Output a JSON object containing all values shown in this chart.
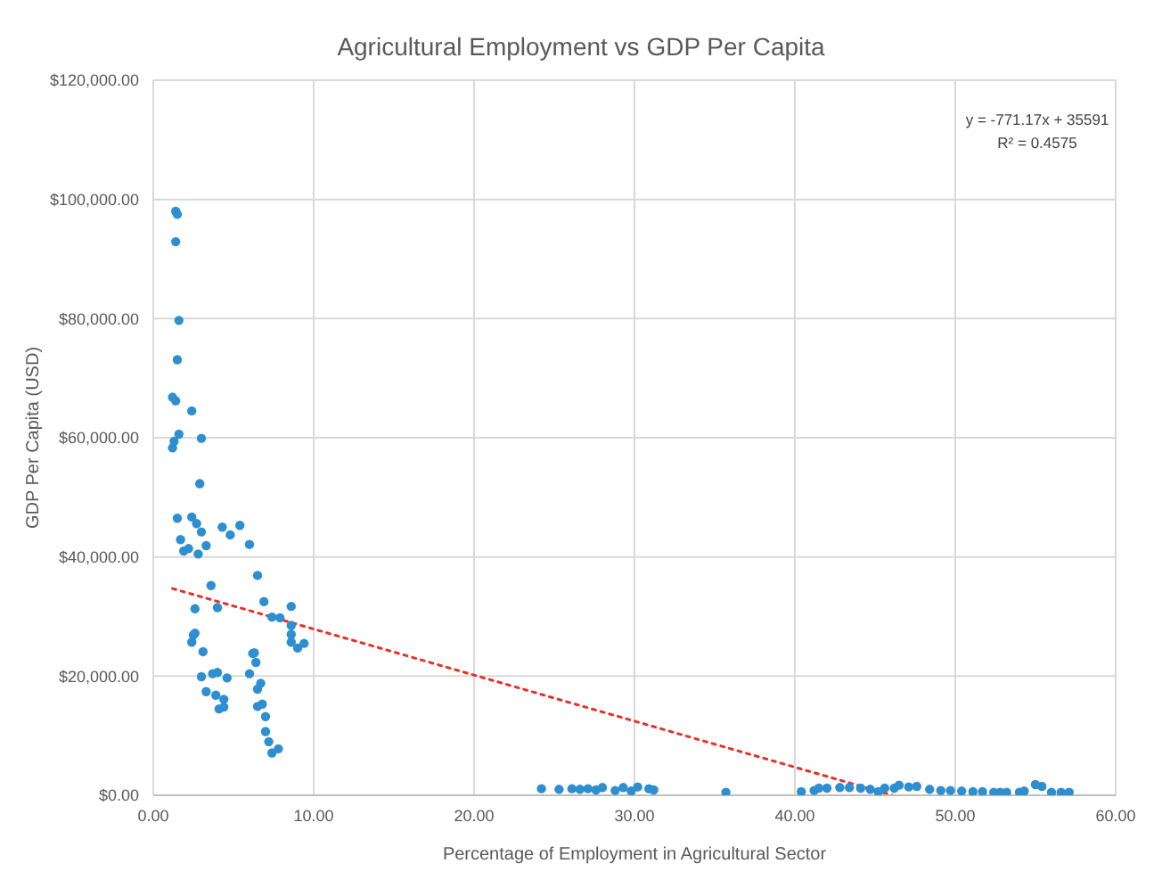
{
  "chart_data": {
    "type": "scatter",
    "title": "Agricultural Employment vs GDP Per Capita",
    "xlabel": "Percentage of Employment in Agricultural Sector",
    "ylabel": "GDP Per Capita (USD)",
    "annotations": [
      "y = -771.17x + 35591",
      "R² = 0.4575"
    ],
    "xlim": [
      0,
      60
    ],
    "xticks": [
      {
        "value": 0,
        "label": "0.00"
      },
      {
        "value": 10,
        "label": "10.00"
      },
      {
        "value": 20,
        "label": "20.00"
      },
      {
        "value": 30,
        "label": "30.00"
      },
      {
        "value": 40,
        "label": "40.00"
      },
      {
        "value": 50,
        "label": "50.00"
      },
      {
        "value": 60,
        "label": "60.00"
      }
    ],
    "ylim": [
      0,
      120000
    ],
    "yticks": [
      {
        "value": 0,
        "label": "$0.00"
      },
      {
        "value": 20000,
        "label": "$20,000.00"
      },
      {
        "value": 40000,
        "label": "$40,000.00"
      },
      {
        "value": 60000,
        "label": "$60,000.00"
      },
      {
        "value": 80000,
        "label": "$80,000.00"
      },
      {
        "value": 100000,
        "label": "$100,000.00"
      },
      {
        "value": 120000,
        "label": "$120,000.00"
      }
    ],
    "grid": true,
    "marker": "circle",
    "series": [
      {
        "color": "#2e8fd0",
        "x": [
          1.4,
          1.5,
          1.4,
          1.6,
          1.5,
          1.2,
          1.4,
          2.4,
          1.6,
          1.3,
          1.2,
          3.0,
          2.9,
          1.5,
          2.4,
          2.7,
          3.0,
          1.7,
          1.9,
          2.2,
          2.8,
          3.3,
          4.3,
          4.8,
          5.4,
          6.0,
          6.5,
          3.6,
          6.9,
          8.6,
          2.6,
          4.0,
          7.4,
          7.9,
          8.6,
          8.6,
          8.6,
          9.0,
          9.4,
          2.6,
          2.5,
          2.4,
          3.1,
          6.2,
          6.3,
          6.4,
          6.0,
          3.0,
          3.7,
          4.0,
          4.6,
          6.7,
          6.5,
          3.3,
          3.9,
          4.4,
          4.4,
          4.1,
          6.5,
          6.8,
          7.0,
          7.0,
          7.2,
          7.8,
          7.4,
          24.2,
          25.3,
          26.1,
          26.6,
          27.1,
          27.6,
          28.0,
          28.8,
          29.3,
          29.8,
          30.2,
          30.9,
          31.2,
          35.7,
          40.4,
          41.2,
          41.5,
          42.0,
          42.8,
          43.4,
          44.1,
          44.7,
          45.2,
          45.6,
          46.2,
          46.5,
          47.1,
          47.6,
          48.4,
          49.1,
          49.7,
          50.4,
          51.1,
          51.7,
          52.4,
          52.8,
          53.2,
          54.0,
          54.3,
          55.0,
          55.4,
          56.0,
          56.6,
          57.1
        ],
        "values": [
          98000,
          97500,
          92900,
          79700,
          73100,
          66800,
          66200,
          64500,
          60600,
          59400,
          58300,
          59900,
          52300,
          46500,
          46700,
          45600,
          44200,
          42900,
          41000,
          41400,
          40500,
          41900,
          45000,
          43700,
          45300,
          42100,
          36900,
          35200,
          32500,
          31700,
          31300,
          31500,
          29900,
          29800,
          28500,
          27000,
          25700,
          24700,
          25500,
          27200,
          26900,
          25700,
          24100,
          23800,
          23900,
          22300,
          20400,
          19900,
          20400,
          20600,
          19700,
          18800,
          17800,
          17400,
          16800,
          16100,
          14800,
          14500,
          14900,
          15300,
          13200,
          10700,
          9000,
          7800,
          7100,
          1100,
          1000,
          1100,
          1000,
          1100,
          900,
          1300,
          800,
          1300,
          700,
          1400,
          1100,
          900,
          500,
          600,
          800,
          1200,
          1200,
          1300,
          1300,
          1200,
          1000,
          600,
          1200,
          1200,
          1700,
          1400,
          1500,
          1000,
          800,
          800,
          700,
          600,
          600,
          500,
          500,
          500,
          500,
          700,
          1800,
          1500,
          500,
          500,
          500
        ]
      },
      {
        "type": "line",
        "color": "#e8302a",
        "line_style": "dotted",
        "marker": "none",
        "x": [
          1.2,
          46.1
        ],
        "values": [
          34700,
          0
        ]
      }
    ]
  }
}
